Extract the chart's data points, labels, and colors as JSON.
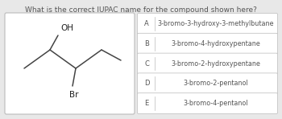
{
  "title": "What is the correct IUPAC name for the compound shown here?",
  "title_fontsize": 6.5,
  "bg_color": "#e8e8e8",
  "box_bg": "#ffffff",
  "options": [
    {
      "label": "A",
      "text": "3-bromo-3-hydroxy-3-methylbutane"
    },
    {
      "label": "B",
      "text": "3-bromo-4-hydroxypentane"
    },
    {
      "label": "C",
      "text": "3-bromo-2-hydroxypentane"
    },
    {
      "label": "D",
      "text": "3-bromo-2-pentanol"
    },
    {
      "label": "E",
      "text": "3-bromo-4-pentanol"
    }
  ],
  "option_fontsize": 5.8,
  "label_fontsize": 6.0,
  "text_color": "#555555",
  "border_color": "#bbbbbb",
  "struct_lc": "#444444",
  "struct_lw": 1.1,
  "oh_fontsize": 7.5,
  "br_fontsize": 7.5
}
